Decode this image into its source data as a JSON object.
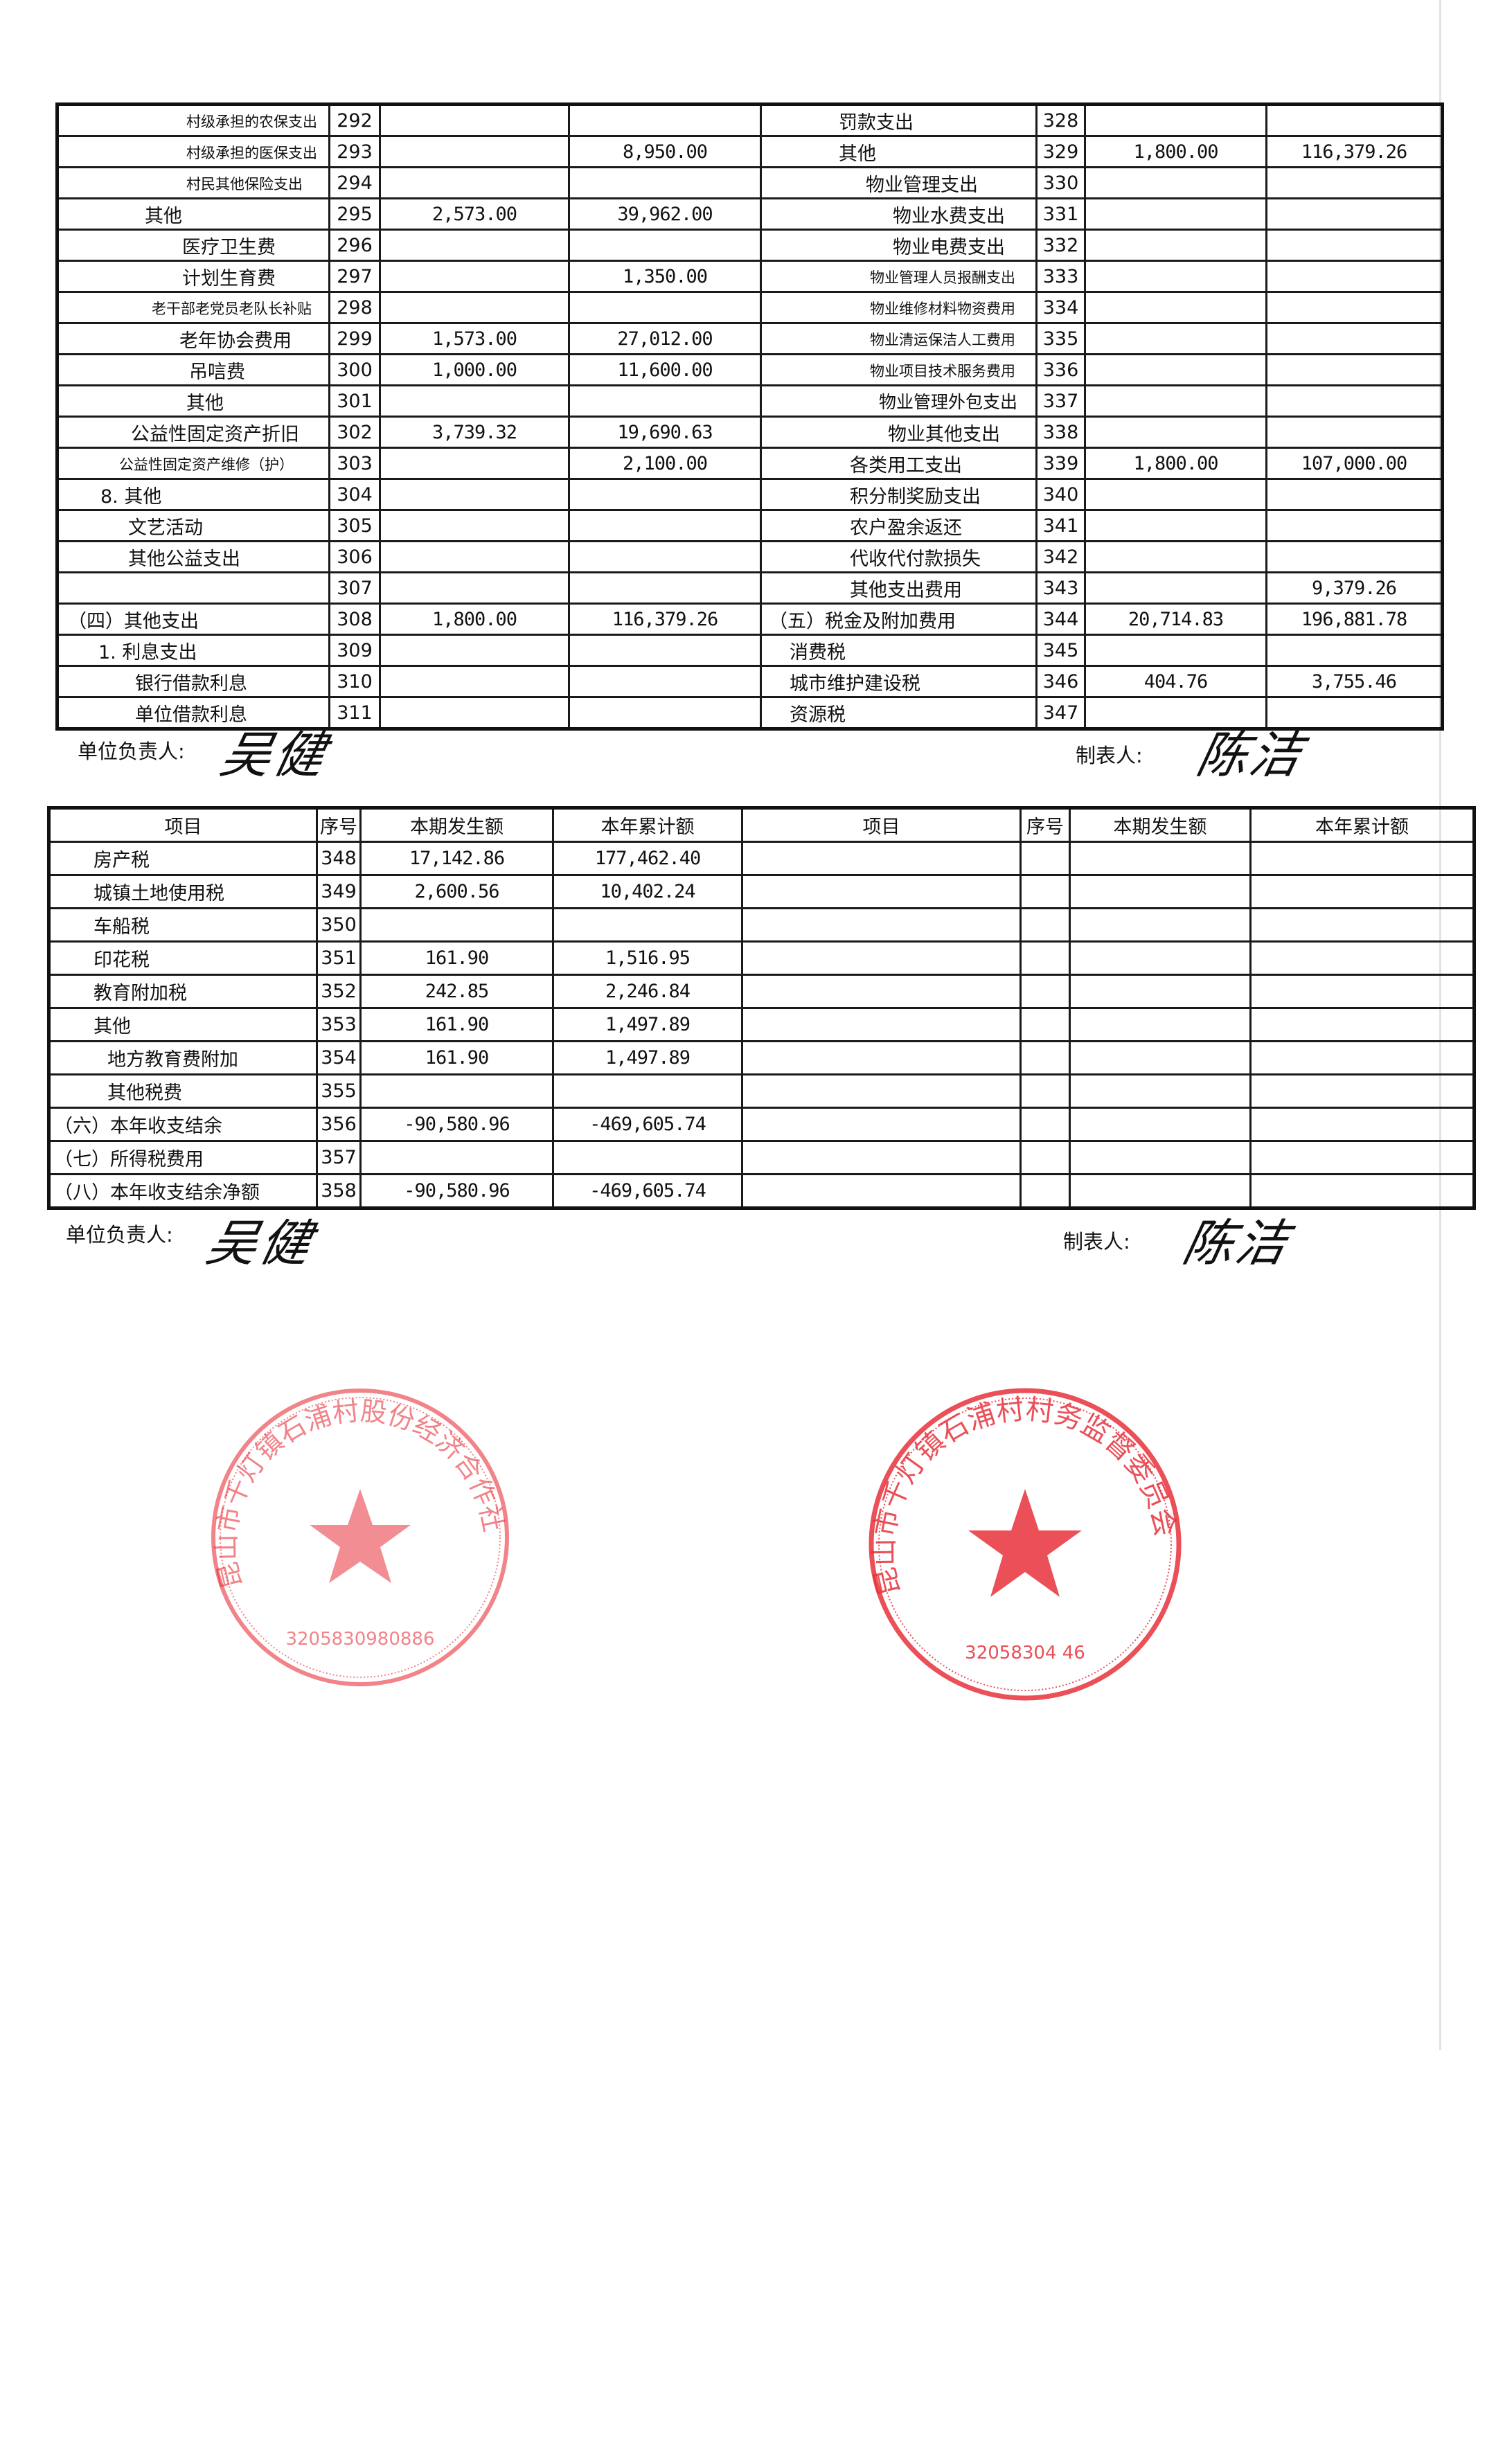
{
  "table_top": {
    "left_rows": [
      {
        "label": "村级承担的农保支出",
        "seq": "292",
        "current": "",
        "cumulative": ""
      },
      {
        "label": "村级承担的医保支出",
        "seq": "293",
        "current": "",
        "cumulative": "8,950.00"
      },
      {
        "label": "村民其他保险支出",
        "seq": "294",
        "current": "",
        "cumulative": ""
      },
      {
        "label": "其他",
        "seq": "295",
        "current": "2,573.00",
        "cumulative": "39,962.00"
      },
      {
        "label": "医疗卫生费",
        "seq": "296",
        "current": "",
        "cumulative": ""
      },
      {
        "label": "计划生育费",
        "seq": "297",
        "current": "",
        "cumulative": "1,350.00"
      },
      {
        "label": "老干部老党员老队长补贴",
        "seq": "298",
        "current": "",
        "cumulative": ""
      },
      {
        "label": "老年协会费用",
        "seq": "299",
        "current": "1,573.00",
        "cumulative": "27,012.00"
      },
      {
        "label": "吊唁费",
        "seq": "300",
        "current": "1,000.00",
        "cumulative": "11,600.00"
      },
      {
        "label": "其他",
        "seq": "301",
        "current": "",
        "cumulative": ""
      },
      {
        "label": "公益性固定资产折旧",
        "seq": "302",
        "current": "3,739.32",
        "cumulative": "19,690.63"
      },
      {
        "label": "公益性固定资产维修（护）",
        "seq": "303",
        "current": "",
        "cumulative": "2,100.00"
      },
      {
        "label": "8. 其他",
        "seq": "304",
        "current": "",
        "cumulative": ""
      },
      {
        "label": "文艺活动",
        "seq": "305",
        "current": "",
        "cumulative": ""
      },
      {
        "label": "其他公益支出",
        "seq": "306",
        "current": "",
        "cumulative": ""
      },
      {
        "label": "",
        "seq": "307",
        "current": "",
        "cumulative": ""
      },
      {
        "label": "（四）其他支出",
        "seq": "308",
        "current": "1,800.00",
        "cumulative": "116,379.26"
      },
      {
        "label": "1. 利息支出",
        "seq": "309",
        "current": "",
        "cumulative": ""
      },
      {
        "label": "银行借款利息",
        "seq": "310",
        "current": "",
        "cumulative": ""
      },
      {
        "label": "单位借款利息",
        "seq": "311",
        "current": "",
        "cumulative": ""
      }
    ],
    "right_rows": [
      {
        "label": "罚款支出",
        "seq": "328",
        "current": "",
        "cumulative": ""
      },
      {
        "label": "其他",
        "seq": "329",
        "current": "1,800.00",
        "cumulative": "116,379.26"
      },
      {
        "label": "物业管理支出",
        "seq": "330",
        "current": "",
        "cumulative": ""
      },
      {
        "label": "物业水费支出",
        "seq": "331",
        "current": "",
        "cumulative": ""
      },
      {
        "label": "物业电费支出",
        "seq": "332",
        "current": "",
        "cumulative": ""
      },
      {
        "label": "物业管理人员报酬支出",
        "seq": "333",
        "current": "",
        "cumulative": ""
      },
      {
        "label": "物业维修材料物资费用",
        "seq": "334",
        "current": "",
        "cumulative": ""
      },
      {
        "label": "物业清运保洁人工费用",
        "seq": "335",
        "current": "",
        "cumulative": ""
      },
      {
        "label": "物业项目技术服务费用",
        "seq": "336",
        "current": "",
        "cumulative": ""
      },
      {
        "label": "物业管理外包支出",
        "seq": "337",
        "current": "",
        "cumulative": ""
      },
      {
        "label": "物业其他支出",
        "seq": "338",
        "current": "",
        "cumulative": ""
      },
      {
        "label": "各类用工支出",
        "seq": "339",
        "current": "1,800.00",
        "cumulative": "107,000.00"
      },
      {
        "label": "积分制奖励支出",
        "seq": "340",
        "current": "",
        "cumulative": ""
      },
      {
        "label": "农户盈余返还",
        "seq": "341",
        "current": "",
        "cumulative": ""
      },
      {
        "label": "代收代付款损失",
        "seq": "342",
        "current": "",
        "cumulative": ""
      },
      {
        "label": "其他支出费用",
        "seq": "343",
        "current": "",
        "cumulative": "9,379.26"
      },
      {
        "label": "（五）税金及附加费用",
        "seq": "344",
        "current": "20,714.83",
        "cumulative": "196,881.78"
      },
      {
        "label": "消费税",
        "seq": "345",
        "current": "",
        "cumulative": ""
      },
      {
        "label": "城市维护建设税",
        "seq": "346",
        "current": "404.76",
        "cumulative": "3,755.46"
      },
      {
        "label": "资源税",
        "seq": "347",
        "current": "",
        "cumulative": ""
      }
    ]
  },
  "signatures_top": {
    "responsible_label": "单位负责人:",
    "responsible_signature": "吴健",
    "preparer_label": "制表人:",
    "preparer_signature": "陈洁"
  },
  "table_bottom": {
    "headers": [
      "项目",
      "序号",
      "本期发生额",
      "本年累计额",
      "项目",
      "序号",
      "本期发生额",
      "本年累计额"
    ],
    "rows": [
      {
        "label": "房产税",
        "seq": "348",
        "current": "17,142.86",
        "cumulative": "177,462.40"
      },
      {
        "label": "城镇土地使用税",
        "seq": "349",
        "current": "2,600.56",
        "cumulative": "10,402.24"
      },
      {
        "label": "车船税",
        "seq": "350",
        "current": "",
        "cumulative": ""
      },
      {
        "label": "印花税",
        "seq": "351",
        "current": "161.90",
        "cumulative": "1,516.95"
      },
      {
        "label": "教育附加税",
        "seq": "352",
        "current": "242.85",
        "cumulative": "2,246.84"
      },
      {
        "label": "其他",
        "seq": "353",
        "current": "161.90",
        "cumulative": "1,497.89"
      },
      {
        "label": "地方教育费附加",
        "seq": "354",
        "current": "161.90",
        "cumulative": "1,497.89"
      },
      {
        "label": "其他税费",
        "seq": "355",
        "current": "",
        "cumulative": ""
      },
      {
        "label": "（六）本年收支结余",
        "seq": "356",
        "current": "-90,580.96",
        "cumulative": "-469,605.74"
      },
      {
        "label": "（七）所得税费用",
        "seq": "357",
        "current": "",
        "cumulative": ""
      },
      {
        "label": "（八）本年收支结余净额",
        "seq": "358",
        "current": "-90,580.96",
        "cumulative": "-469,605.74"
      }
    ]
  },
  "signatures_bottom": {
    "responsible_label": "单位负责人:",
    "responsible_signature": "吴健",
    "preparer_label": "制表人:",
    "preparer_signature": "陈洁"
  },
  "stamps": {
    "left_text": "昆山市千灯镇石浦村股份经济合作社",
    "left_code": "3205830980886",
    "right_text": "昆山市千灯镇石浦村村务监督委员会",
    "right_code": "32058304 46",
    "color": "#e8303a"
  }
}
